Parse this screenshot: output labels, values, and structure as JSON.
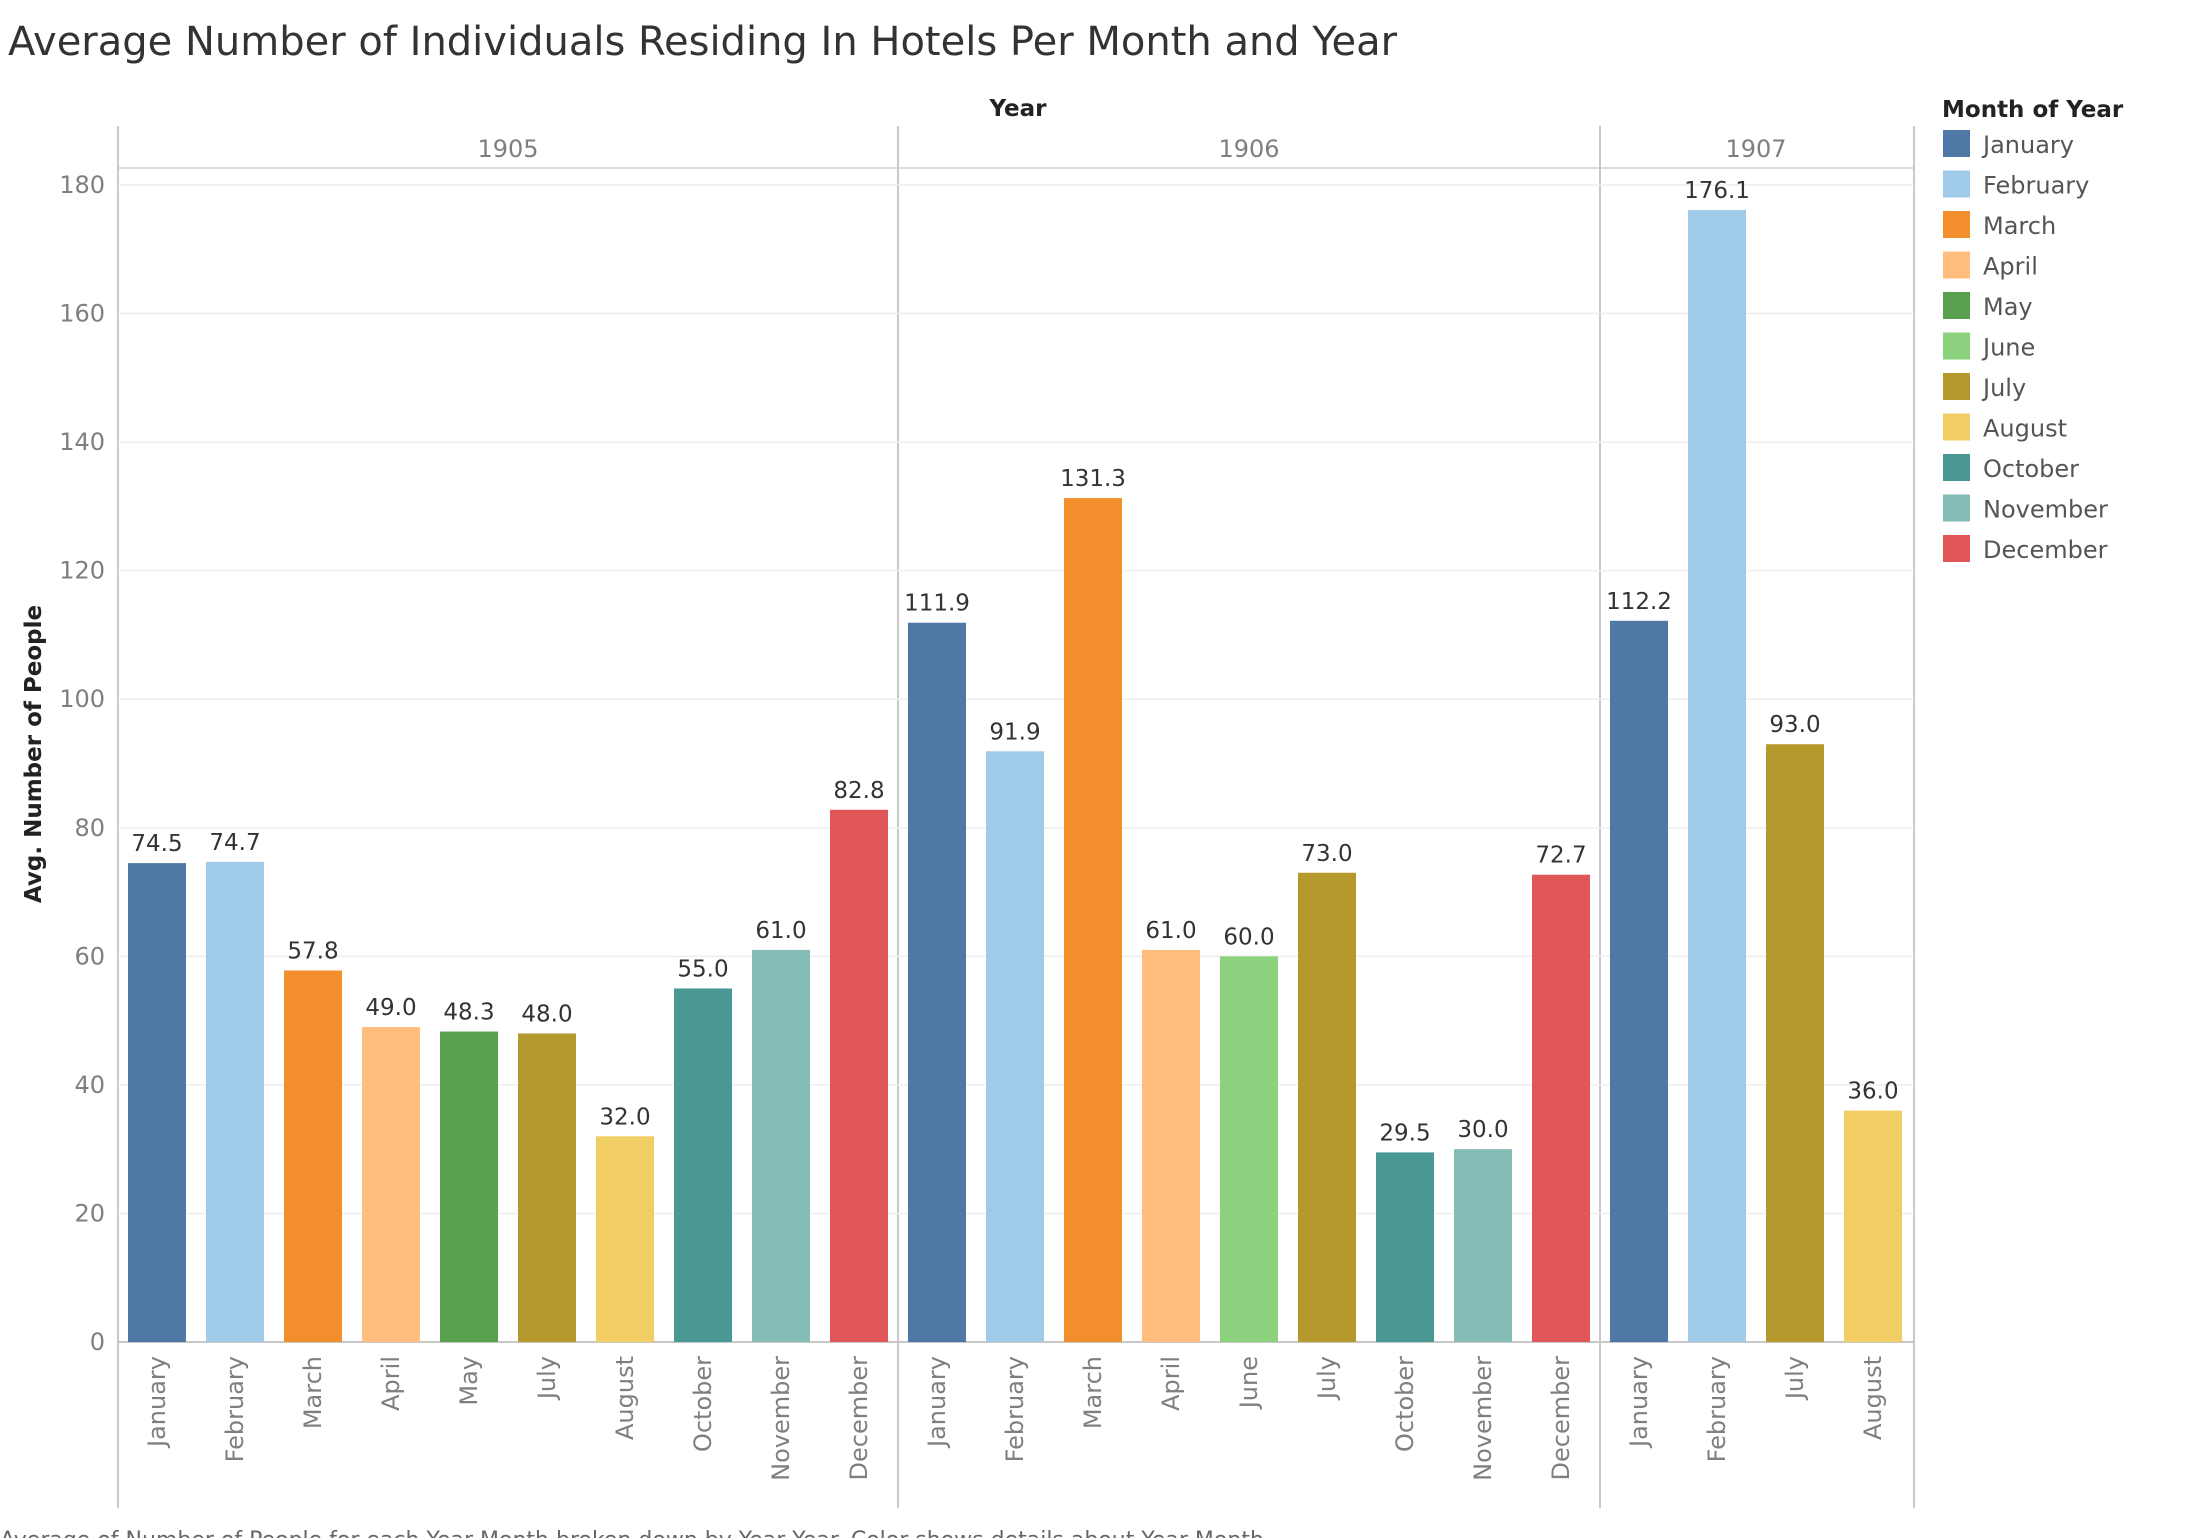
{
  "chart_data": {
    "type": "bar",
    "title": "Average Number of Individuals Residing In Hotels Per Month and Year",
    "column_header": "Year",
    "ylabel": "Avg. Number of People",
    "ylim": [
      0,
      190
    ],
    "yticks": [
      0,
      20,
      40,
      60,
      80,
      100,
      120,
      140,
      160,
      180
    ],
    "grid": true,
    "legend": {
      "title": "Month of Year",
      "position": "right",
      "items": [
        {
          "name": "January",
          "color": "#4e79a7"
        },
        {
          "name": "February",
          "color": "#a0cbe8"
        },
        {
          "name": "March",
          "color": "#f28e2b"
        },
        {
          "name": "April",
          "color": "#ffbe7d"
        },
        {
          "name": "May",
          "color": "#59a14f"
        },
        {
          "name": "June",
          "color": "#8cd17d"
        },
        {
          "name": "July",
          "color": "#b6992d"
        },
        {
          "name": "August",
          "color": "#f1ce63"
        },
        {
          "name": "October",
          "color": "#499894"
        },
        {
          "name": "November",
          "color": "#86bcb6"
        },
        {
          "name": "December",
          "color": "#e15759"
        }
      ]
    },
    "panels": [
      {
        "year": "1905",
        "categories": [
          "January",
          "February",
          "March",
          "April",
          "May",
          "July",
          "August",
          "October",
          "November",
          "December"
        ],
        "values": [
          74.5,
          74.7,
          57.8,
          49.0,
          48.3,
          48.0,
          32.0,
          55.0,
          61.0,
          82.8
        ],
        "labels": [
          "74.5",
          "74.7",
          "57.8",
          "49.0",
          "48.3",
          "48.0",
          "32.0",
          "55.0",
          "61.0",
          "82.8"
        ]
      },
      {
        "year": "1906",
        "categories": [
          "January",
          "February",
          "March",
          "April",
          "June",
          "July",
          "October",
          "November",
          "December"
        ],
        "values": [
          111.9,
          91.9,
          131.3,
          61.0,
          60.0,
          73.0,
          29.5,
          30.0,
          72.7
        ],
        "labels": [
          "111.9",
          "91.9",
          "131.3",
          "61.0",
          "60.0",
          "73.0",
          "29.5",
          "30.0",
          "72.7"
        ]
      },
      {
        "year": "1907",
        "categories": [
          "January",
          "February",
          "July",
          "August"
        ],
        "values": [
          112.2,
          176.1,
          93.0,
          36.0
        ],
        "labels": [
          "112.2",
          "176.1",
          "93.0",
          "36.0"
        ]
      }
    ],
    "footer": "Average of Number of People for each Year Month broken down by Year Year.  Color shows details about Year Month."
  }
}
